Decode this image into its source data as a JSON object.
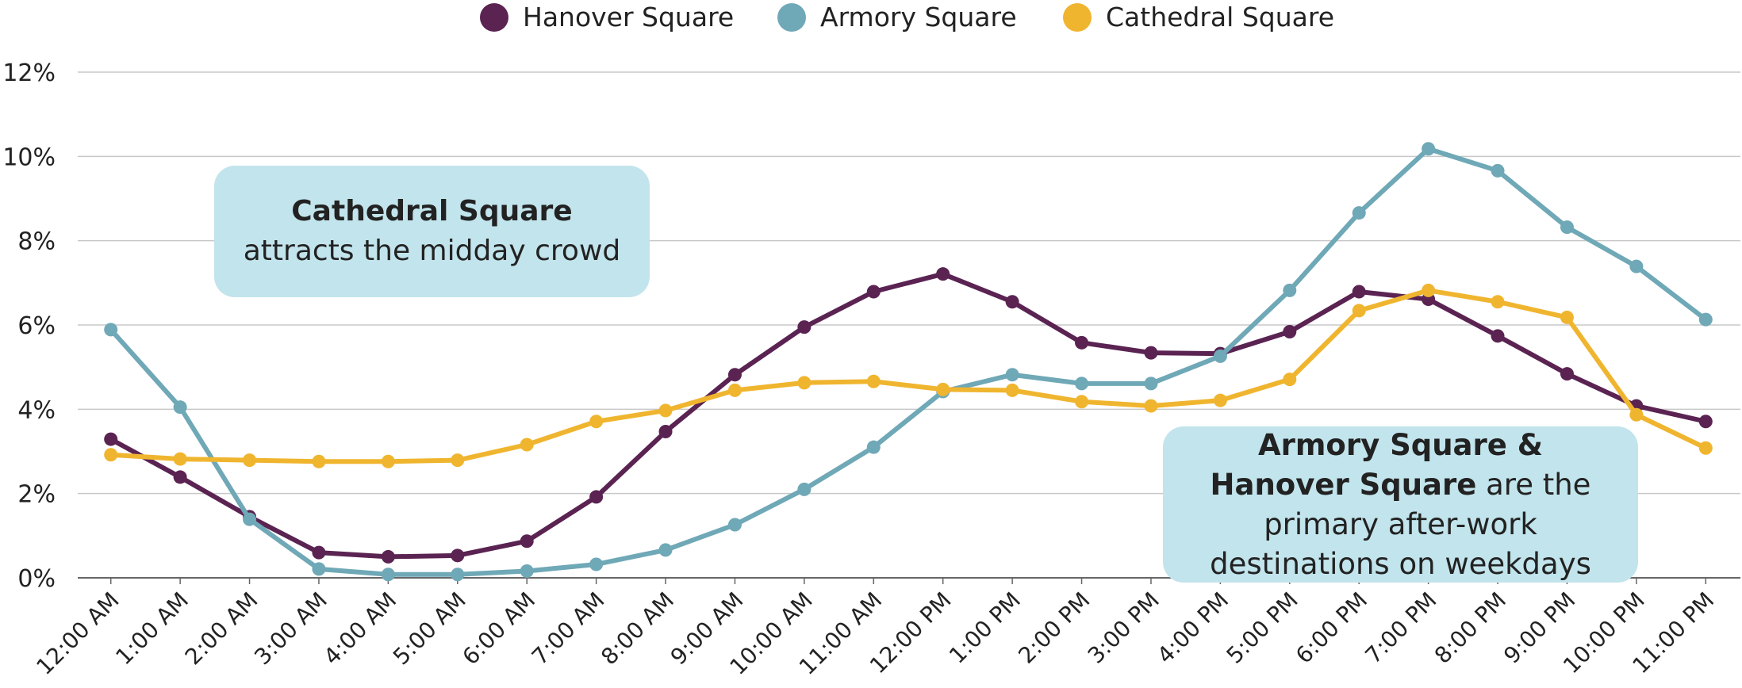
{
  "chart_data": {
    "type": "line",
    "categories": [
      "12:00 AM",
      "1:00 AM",
      "2:00 AM",
      "3:00 AM",
      "4:00 AM",
      "5:00 AM",
      "6:00 AM",
      "7:00 AM",
      "8:00 AM",
      "9:00 AM",
      "10:00 AM",
      "11:00 AM",
      "12:00 PM",
      "1:00 PM",
      "2:00 PM",
      "3:00 PM",
      "4:00 PM",
      "5:00 PM",
      "6:00 PM",
      "7:00 PM",
      "8:00 PM",
      "9:00 PM",
      "10:00 PM",
      "11:00 PM"
    ],
    "series": [
      {
        "name": "Hanover Square",
        "color": "#5a2352",
        "values": [
          3.29,
          2.39,
          1.45,
          0.6,
          0.5,
          0.53,
          0.87,
          1.92,
          3.47,
          4.82,
          5.95,
          6.79,
          7.21,
          6.55,
          5.58,
          5.34,
          5.32,
          5.84,
          6.79,
          6.61,
          5.74,
          4.84,
          4.08,
          3.71
        ]
      },
      {
        "name": "Armory Square",
        "color": "#6fa8b6",
        "values": [
          5.89,
          4.05,
          1.39,
          0.21,
          0.08,
          0.08,
          0.16,
          0.32,
          0.66,
          1.26,
          2.1,
          3.1,
          4.42,
          4.82,
          4.61,
          4.61,
          5.26,
          6.82,
          8.66,
          10.18,
          9.66,
          8.32,
          7.39,
          6.13
        ]
      },
      {
        "name": "Cathedral Square",
        "color": "#f0b52f",
        "values": [
          2.92,
          2.82,
          2.79,
          2.76,
          2.76,
          2.79,
          3.16,
          3.71,
          3.97,
          4.45,
          4.63,
          4.66,
          4.47,
          4.45,
          4.18,
          4.08,
          4.21,
          4.71,
          6.34,
          6.82,
          6.55,
          6.18,
          3.87,
          3.08
        ]
      }
    ],
    "ylim": [
      0,
      12
    ],
    "yticks": [
      {
        "value": 0,
        "label": "0%"
      },
      {
        "value": 2,
        "label": "2%"
      },
      {
        "value": 4,
        "label": "4%"
      },
      {
        "value": 6,
        "label": "6%"
      },
      {
        "value": 8,
        "label": "8%"
      },
      {
        "value": 10,
        "label": "10%"
      },
      {
        "value": 12,
        "label": "12%"
      }
    ],
    "grid": true,
    "legend": "top",
    "annotations": [
      {
        "bold": "Cathedral Square",
        "text": "attracts the midday crowd"
      },
      {
        "bold": "Armory Square & Hanover Square",
        "text": "are the primary after-work destinations on weekdays"
      }
    ]
  }
}
